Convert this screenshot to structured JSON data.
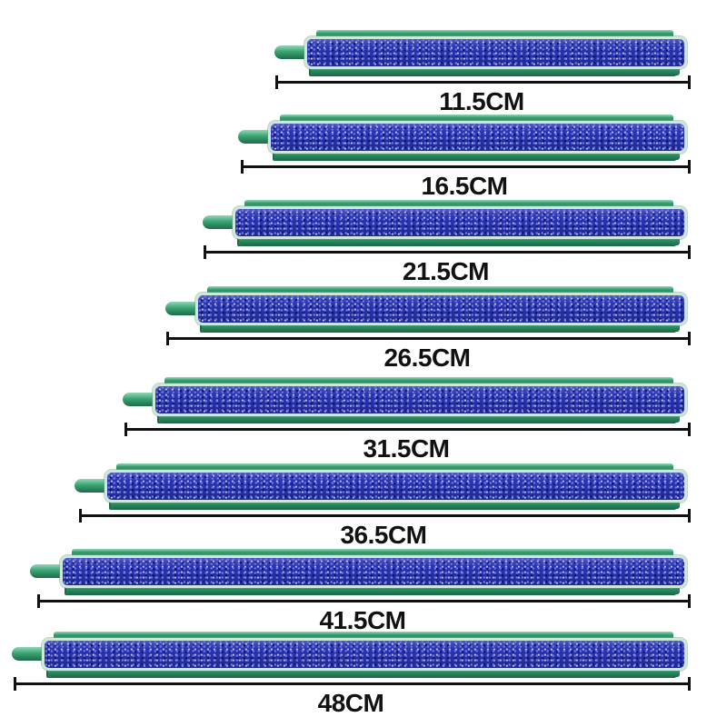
{
  "diagram": {
    "product": "air-stone-bar",
    "unit": "CM"
  },
  "items": [
    {
      "label": "11.5CM",
      "length_cm": 11.5
    },
    {
      "label": "16.5CM",
      "length_cm": 16.5
    },
    {
      "label": "21.5CM",
      "length_cm": 21.5
    },
    {
      "label": "26.5CM",
      "length_cm": 26.5
    },
    {
      "label": "31.5CM",
      "length_cm": 31.5
    },
    {
      "label": "36.5CM",
      "length_cm": 36.5
    },
    {
      "label": "41.5CM",
      "length_cm": 41.5
    },
    {
      "label": "48CM",
      "length_cm": 48
    }
  ],
  "colors": {
    "frame_green": "#2f9868",
    "frame_light": "#93d6b6",
    "frame_dark": "#1c6b48",
    "nozzle_green": "#3ba474",
    "stone_blue": "#2a34b2",
    "stone_border": "#cde8da",
    "stone_sparkle_light": "#6b76e0",
    "stone_sparkle_pale": "#b9c0f0",
    "stone_sparkle_dark": "#10156e",
    "line_color": "#111111",
    "background": "#ffffff"
  }
}
